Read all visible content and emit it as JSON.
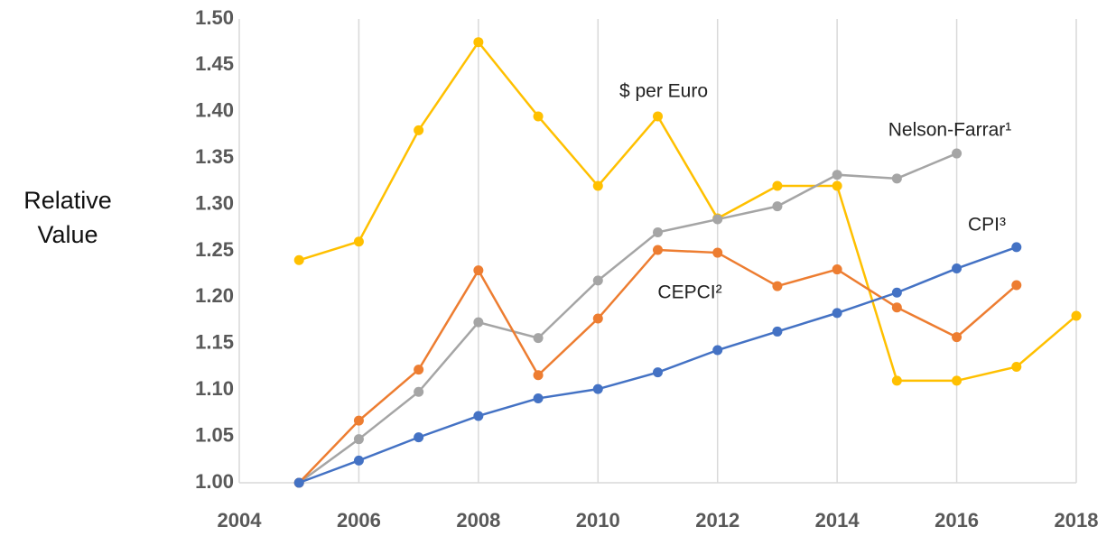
{
  "chart_data": {
    "type": "line",
    "y_label": "Relative Value",
    "x": [
      2005,
      2006,
      2007,
      2008,
      2009,
      2010,
      2011,
      2012,
      2013,
      2014,
      2015,
      2016,
      2017,
      2018
    ],
    "series": [
      {
        "name": "$ per Euro",
        "color": "#ffc000",
        "values": [
          1.24,
          1.26,
          1.38,
          1.475,
          1.395,
          1.32,
          1.395,
          1.285,
          1.32,
          1.32,
          1.11,
          1.11,
          1.125,
          1.18
        ]
      },
      {
        "name": "Nelson-Farrar¹",
        "color": "#a5a5a5",
        "values": [
          1.0,
          1.047,
          1.098,
          1.173,
          1.156,
          1.218,
          1.27,
          1.284,
          1.298,
          1.332,
          1.328,
          1.355,
          null,
          null
        ]
      },
      {
        "name": "CEPCI²",
        "color": "#ed7d31",
        "values": [
          1.0,
          1.067,
          1.122,
          1.229,
          1.116,
          1.177,
          1.251,
          1.248,
          1.212,
          1.23,
          1.189,
          1.157,
          1.213,
          null
        ]
      },
      {
        "name": "CPI³",
        "color": "#4472c4",
        "values": [
          1.0,
          1.024,
          1.049,
          1.072,
          1.091,
          1.101,
          1.119,
          1.143,
          1.163,
          1.183,
          1.205,
          1.231,
          1.254,
          null
        ]
      }
    ],
    "xlim": [
      2004,
      2018
    ],
    "xticks": [
      2004,
      2006,
      2008,
      2010,
      2012,
      2014,
      2016,
      2018
    ],
    "ylim": [
      1.0,
      1.5
    ],
    "yticks": [
      {
        "value": 1.0,
        "label": "1.00"
      },
      {
        "value": 1.05,
        "label": "1.05"
      },
      {
        "value": 1.1,
        "label": "1.10"
      },
      {
        "value": 1.15,
        "label": "1.15"
      },
      {
        "value": 1.2,
        "label": "1.20"
      },
      {
        "value": 1.25,
        "label": "1.25"
      },
      {
        "value": 1.3,
        "label": "1.30"
      },
      {
        "value": 1.35,
        "label": "1.35"
      },
      {
        "value": 1.4,
        "label": "1.40"
      },
      {
        "value": 1.45,
        "label": "1.45"
      },
      {
        "value": 1.5,
        "label": "1.50"
      }
    ],
    "grid": "x"
  }
}
